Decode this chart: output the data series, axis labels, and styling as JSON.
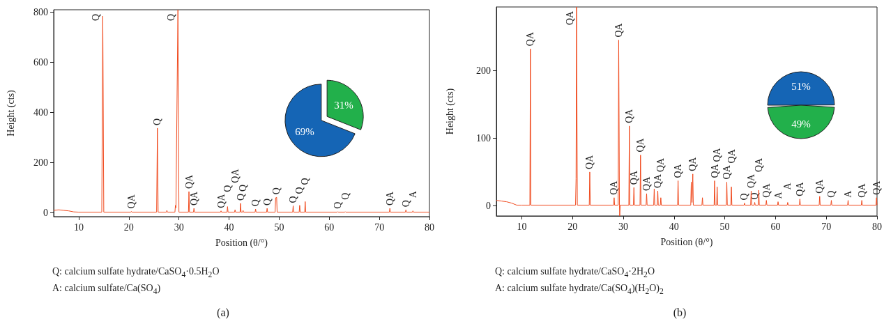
{
  "chart_data": [
    {
      "type": "line",
      "xlabel": "Position (θ/°)",
      "ylabel": "Height (cts)",
      "xlim": [
        5,
        80
      ],
      "ylim": [
        -15,
        810
      ],
      "xticks": [
        10,
        20,
        30,
        40,
        50,
        60,
        70,
        80
      ],
      "yticks": [
        0,
        200,
        400,
        600,
        800
      ],
      "grid": false,
      "series": [
        {
          "color": "#f04a1e",
          "x": [
            5,
            6,
            7,
            8,
            9,
            10,
            14.6,
            14.8,
            15.0,
            20.4,
            20.5,
            20.6,
            25.55,
            25.7,
            25.85,
            27.5,
            27.6,
            27.7,
            29.2,
            29.3,
            29.4,
            29.8,
            30.0,
            31.9,
            32.0,
            32.1,
            32.9,
            33.0,
            33.1,
            38.3,
            38.4,
            38.5,
            39.6,
            39.7,
            39.8,
            41.1,
            41.2,
            41.3,
            42.2,
            42.3,
            42.4,
            42.7,
            42.8,
            42.9,
            45.2,
            45.3,
            45.4,
            47.5,
            47.6,
            47.7,
            49.2,
            49.3,
            49.5,
            49.6,
            52.7,
            52.8,
            52.9,
            54.0,
            54.1,
            54.2,
            55.1,
            55.2,
            55.3,
            61.6,
            61.7,
            61.8,
            63.1,
            63.2,
            63.3,
            72.0,
            72.1,
            72.2,
            75.2,
            75.3,
            75.4,
            76.6,
            76.7,
            76.8,
            80
          ],
          "values": [
            10,
            12,
            10,
            8,
            4,
            3,
            3,
            785,
            3,
            3,
            6,
            3,
            3,
            338,
            3,
            3,
            10,
            3,
            3,
            30,
            20,
            810,
            3,
            3,
            85,
            3,
            3,
            18,
            3,
            3,
            8,
            3,
            3,
            25,
            3,
            3,
            12,
            3,
            3,
            38,
            3,
            3,
            10,
            3,
            3,
            15,
            3,
            3,
            18,
            3,
            3,
            60,
            62,
            3,
            3,
            28,
            3,
            3,
            30,
            3,
            3,
            45,
            3,
            3,
            5,
            3,
            3,
            5,
            3,
            3,
            18,
            3,
            3,
            12,
            3,
            3,
            8,
            3,
            3
          ]
        }
      ],
      "annotations": [
        {
          "text": "Q",
          "x": 14.8,
          "y": 785
        },
        {
          "text": "Q",
          "x": 25.7,
          "y": 338
        },
        {
          "text": "Q",
          "x": 29.8,
          "y": 810
        },
        {
          "text": "QA",
          "x": 20.5,
          "y": 6
        },
        {
          "text": "QA",
          "x": 32.0,
          "y": 85
        },
        {
          "text": "QA",
          "x": 33.0,
          "y": 18
        },
        {
          "text": "QA",
          "x": 38.4,
          "y": 8
        },
        {
          "text": "Q",
          "x": 39.7,
          "y": 25
        },
        {
          "text": "QA",
          "x": 41.2,
          "y": 12
        },
        {
          "text": "Q",
          "x": 42.3,
          "y": 38
        },
        {
          "text": "Q",
          "x": 42.8,
          "y": 10
        },
        {
          "text": "Q",
          "x": 45.3,
          "y": 15
        },
        {
          "text": "Q",
          "x": 47.6,
          "y": 18
        },
        {
          "text": "Q",
          "x": 49.5,
          "y": 62
        },
        {
          "text": "Q",
          "x": 52.8,
          "y": 28
        },
        {
          "text": "Q",
          "x": 54.1,
          "y": 30
        },
        {
          "text": "Q",
          "x": 55.2,
          "y": 45
        },
        {
          "text": "Q",
          "x": 61.7,
          "y": 5
        },
        {
          "text": "Q",
          "x": 63.2,
          "y": 5
        },
        {
          "text": "QA",
          "x": 72.1,
          "y": 18
        },
        {
          "text": "Q",
          "x": 75.3,
          "y": 12
        },
        {
          "text": "A",
          "x": 76.7,
          "y": 8
        },
        "Q: calcium sulfate hydrate/CaSO$_{4}$·0.5H$_{2}$O",
        "A: calcium sulfate/Ca(SO$_{4}$)",
        "(a)"
      ]
    },
    {
      "type": "pie",
      "categories": [
        null,
        null
      ],
      "values": [
        31,
        69
      ],
      "colors": [
        "#22b04b",
        "#1565b5"
      ],
      "value_labels": [
        "31%",
        "69%"
      ]
    },
    {
      "type": "line",
      "xlabel": "Position (θ/°)",
      "ylabel": "Height (cts)",
      "xlim": [
        5,
        80
      ],
      "ylim": [
        -15,
        294
      ],
      "xticks": [
        10,
        20,
        30,
        40,
        50,
        60,
        70,
        80
      ],
      "yticks": [
        0,
        100,
        200
      ],
      "grid": false,
      "series": [
        {
          "color": "#f04a1e",
          "x": [
            5,
            6,
            7,
            8,
            9,
            10,
            11.6,
            11.7,
            11.8,
            20.6,
            20.7,
            20.8,
            20.95,
            23.3,
            23.4,
            23.5,
            28.1,
            28.2,
            28.3,
            29.0,
            29.1,
            29.25,
            29.3,
            29.4,
            31.1,
            31.2,
            31.3,
            32.0,
            32.1,
            32.2,
            33.3,
            33.4,
            33.5,
            34.5,
            34.6,
            34.7,
            36.0,
            36.1,
            36.2,
            36.7,
            36.8,
            36.9,
            37.3,
            37.4,
            37.5,
            40.7,
            40.8,
            40.9,
            43.3,
            43.4,
            43.55,
            43.7,
            43.8,
            45.5,
            45.6,
            45.7,
            47.9,
            48.0,
            48.1,
            48.4,
            48.5,
            48.6,
            50.3,
            50.4,
            50.5,
            51.2,
            51.3,
            51.4,
            53.8,
            53.9,
            54.0,
            55.1,
            55.2,
            55.3,
            55.8,
            55.9,
            56.0,
            56.6,
            56.7,
            56.8,
            58.1,
            58.2,
            58.3,
            60.4,
            60.5,
            60.6,
            62.3,
            62.4,
            62.5,
            64.7,
            64.8,
            64.9,
            68.6,
            68.7,
            68.8,
            70.9,
            71.0,
            71.1,
            74.2,
            74.3,
            74.4,
            76.9,
            77.0,
            77.1,
            79.8,
            79.9,
            80
          ],
          "values": [
            8,
            7,
            6,
            4,
            1,
            1,
            1,
            232,
            1,
            1,
            40,
            294,
            1,
            1,
            50,
            1,
            1,
            12,
            1,
            1,
            245,
            1,
            -15,
            1,
            1,
            118,
            1,
            1,
            27,
            1,
            1,
            75,
            1,
            1,
            18,
            1,
            1,
            25,
            1,
            1,
            22,
            1,
            1,
            12,
            1,
            1,
            37,
            1,
            1,
            35,
            5,
            47,
            1,
            1,
            12,
            1,
            1,
            37,
            1,
            1,
            28,
            1,
            1,
            35,
            1,
            1,
            28,
            1,
            1,
            4,
            1,
            1,
            22,
            1,
            1,
            5,
            1,
            1,
            23,
            1,
            1,
            8,
            1,
            1,
            6,
            1,
            1,
            5,
            1,
            1,
            10,
            1,
            1,
            14,
            1,
            1,
            8,
            1,
            1,
            8,
            1,
            1,
            8,
            1,
            1,
            12,
            1
          ]
        }
      ],
      "annotations": [
        {
          "text": "QA",
          "x": 11.7,
          "y": 232
        },
        {
          "text": "QA",
          "x": 20.8,
          "y": 294
        },
        {
          "text": "QA",
          "x": 23.4,
          "y": 50
        },
        {
          "text": "QA",
          "x": 28.2,
          "y": 12
        },
        {
          "text": "QA",
          "x": 29.1,
          "y": 245
        },
        {
          "text": "QA",
          "x": 31.2,
          "y": 118
        },
        {
          "text": "QA",
          "x": 32.1,
          "y": 27
        },
        {
          "text": "QA",
          "x": 33.4,
          "y": 75
        },
        {
          "text": "QA",
          "x": 34.6,
          "y": 18
        },
        {
          "text": "QA",
          "x": 36.8,
          "y": 22
        },
        {
          "text": "QA",
          "x": 37.4,
          "y": 12
        },
        {
          "text": "QA",
          "x": 40.8,
          "y": 37
        },
        {
          "text": "QA",
          "x": 43.7,
          "y": 47
        },
        {
          "text": "QA",
          "x": 48.0,
          "y": 37
        },
        {
          "text": "QA",
          "x": 48.5,
          "y": 28
        },
        {
          "text": "QA",
          "x": 50.4,
          "y": 35
        },
        {
          "text": "QA",
          "x": 51.3,
          "y": 28
        },
        {
          "text": "Q",
          "x": 53.9,
          "y": 4
        },
        {
          "text": "QA",
          "x": 55.2,
          "y": 22
        },
        {
          "text": "Q",
          "x": 55.9,
          "y": 5
        },
        {
          "text": "QA",
          "x": 56.7,
          "y": 23
        },
        {
          "text": "QA",
          "x": 58.2,
          "y": 8
        },
        {
          "text": "A",
          "x": 60.5,
          "y": 6
        },
        {
          "text": "A",
          "x": 62.4,
          "y": 5
        },
        {
          "text": "QA",
          "x": 64.8,
          "y": 10
        },
        {
          "text": "QA",
          "x": 68.7,
          "y": 14
        },
        {
          "text": "Q",
          "x": 71.0,
          "y": 8
        },
        {
          "text": "A",
          "x": 74.3,
          "y": 8
        },
        {
          "text": "QA",
          "x": 77.0,
          "y": 8
        },
        {
          "text": "QA",
          "x": 79.9,
          "y": 12
        },
        "Q: calcium sulfate hydrate/CaSO$_{4}$·2H$_{2}$O",
        "A: calcium sulfate hydrate/Ca(SO$_{4}$)(H$_{2}$O)$_{2}$",
        "(b)"
      ]
    },
    {
      "type": "pie",
      "categories": [
        null,
        null
      ],
      "values": [
        51,
        49
      ],
      "colors": [
        "#1565b5",
        "#22b04b"
      ],
      "value_labels": [
        "51%",
        "49%"
      ]
    }
  ]
}
